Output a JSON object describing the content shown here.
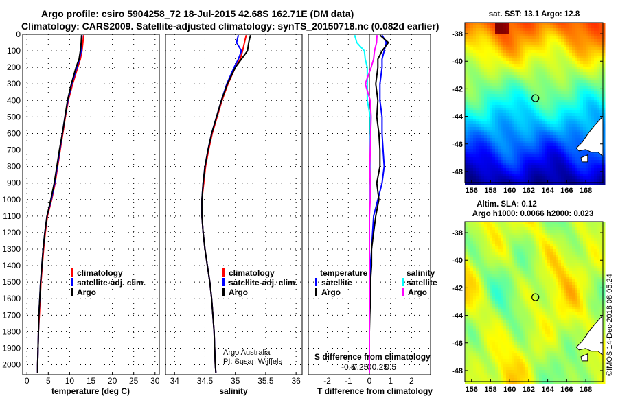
{
  "header": {
    "line1": "Argo profile: csiro 5904258_72 18-Jul-2015 42.68S 162.71E (DM data)",
    "line2": "Climatology: CARS2009. Satellite-adjusted climatology: synTS_20150718.nc (0.082d earlier)"
  },
  "colors": {
    "climatology": "#ff0000",
    "satellite": "#0000ff",
    "argo": "#000000",
    "sat_salinity": "#00ffff",
    "clim_salinity": "#ff00ff"
  },
  "chart_data": [
    {
      "type": "line",
      "name": "temperature",
      "xlabel": "temperature (deg C)",
      "ylabel": "",
      "xlim": [
        -1,
        31
      ],
      "ylim": [
        2060,
        0
      ],
      "xticks": [
        "0",
        "5",
        "10",
        "15",
        "20",
        "25",
        "30"
      ],
      "yticks": [
        "0",
        "100",
        "200",
        "300",
        "400",
        "500",
        "600",
        "700",
        "800",
        "900",
        "1000",
        "1100",
        "1200",
        "1300",
        "1400",
        "1500",
        "1600",
        "1700",
        "1800",
        "1900",
        "2000"
      ],
      "grid": true,
      "legend": [
        "climatology",
        "satellite-adj. clim.",
        "Argo"
      ],
      "depth": [
        5,
        50,
        100,
        150,
        200,
        300,
        400,
        500,
        600,
        700,
        800,
        900,
        1000,
        1100,
        1200,
        1300,
        1400,
        1500,
        1600,
        1700,
        1800,
        1900,
        2000,
        2050
      ],
      "series": [
        {
          "name": "climatology",
          "color": "#ff0000",
          "values": [
            13.3,
            13.1,
            12.9,
            12.5,
            11.9,
            10.7,
            9.7,
            9.0,
            8.4,
            7.8,
            7.2,
            6.6,
            5.8,
            4.8,
            4.3,
            3.9,
            3.6,
            3.3,
            3.1,
            2.9,
            2.7,
            2.6,
            2.5,
            2.5
          ]
        },
        {
          "name": "satellite-adj. clim.",
          "color": "#0000ff",
          "values": [
            12.9,
            12.8,
            12.7,
            12.3,
            11.7,
            10.5,
            9.6,
            8.9,
            8.3,
            7.7,
            7.1,
            6.5,
            5.7,
            4.7,
            4.2,
            3.8,
            3.5,
            3.2,
            3.0,
            2.8,
            2.7,
            2.6,
            2.5,
            2.5
          ]
        },
        {
          "name": "Argo",
          "color": "#000000",
          "values": [
            12.8,
            12.7,
            12.5,
            12.2,
            11.5,
            10.4,
            9.5,
            8.9,
            8.3,
            7.6,
            7.0,
            6.4,
            5.6,
            4.7,
            4.2,
            3.8,
            3.5,
            3.2,
            3.0,
            2.8,
            2.7,
            2.6,
            2.5,
            2.5
          ]
        }
      ]
    },
    {
      "type": "line",
      "name": "salinity",
      "xlabel": "salinity",
      "xlim": [
        33.85,
        36.1
      ],
      "ylim": [
        2060,
        0
      ],
      "xticks": [
        "34",
        "34.5",
        "35",
        "35.5",
        "36"
      ],
      "grid": true,
      "legend": [
        "climatology",
        "satellite-adj. clim.",
        "Argo"
      ],
      "annotation": [
        "Argo Australia",
        "PI: Susan Wijffels"
      ],
      "depth": [
        5,
        50,
        100,
        150,
        200,
        300,
        400,
        500,
        600,
        700,
        800,
        900,
        1000,
        1100,
        1200,
        1300,
        1400,
        1500,
        1600,
        1700,
        1800,
        1900,
        2000,
        2050
      ],
      "series": [
        {
          "name": "climatology",
          "color": "#ff0000",
          "values": [
            35.18,
            35.15,
            35.12,
            35.08,
            35.0,
            34.88,
            34.78,
            34.7,
            34.62,
            34.56,
            34.51,
            34.48,
            34.45,
            34.45,
            34.47,
            34.5,
            34.54,
            34.58,
            34.61,
            34.63,
            34.65,
            34.66,
            34.67,
            34.68
          ]
        },
        {
          "name": "satellite-adj. clim.",
          "color": "#0000ff",
          "values": [
            35.05,
            35.02,
            35.1,
            35.05,
            34.98,
            34.86,
            34.77,
            34.69,
            34.61,
            34.55,
            34.5,
            34.47,
            34.45,
            34.45,
            34.47,
            34.5,
            34.54,
            34.58,
            34.61,
            34.63,
            34.65,
            34.66,
            34.67,
            34.68
          ]
        },
        {
          "name": "Argo",
          "color": "#000000",
          "values": [
            35.25,
            35.22,
            35.2,
            35.1,
            35.0,
            34.87,
            34.77,
            34.69,
            34.61,
            34.55,
            34.5,
            34.47,
            34.45,
            34.45,
            34.47,
            34.5,
            34.54,
            34.58,
            34.61,
            34.63,
            34.65,
            34.66,
            34.67,
            34.68
          ]
        }
      ]
    },
    {
      "type": "line",
      "name": "difference",
      "xlabel": "T difference from climatology",
      "xlabel2": "S difference from climatology",
      "xlim": [
        -2.9,
        2.9
      ],
      "ylim": [
        2060,
        0
      ],
      "xticks": [
        "-2",
        "-1",
        "0",
        "1",
        "2"
      ],
      "xticks2": [
        "-0.5",
        "-0.25",
        "0",
        "0.25",
        "0.5"
      ],
      "grid": true,
      "legend_temperature_title": "temperature",
      "legend_salinity_title": "salinity",
      "legend_temperature": [
        "satellite",
        "Argo"
      ],
      "legend_salinity": [
        "satellite",
        "Argo"
      ],
      "depth": [
        5,
        50,
        100,
        150,
        200,
        300,
        400,
        500,
        600,
        700,
        800,
        900,
        1000,
        1100,
        1200,
        1300,
        1400,
        1500,
        1600,
        1700,
        1800,
        1900,
        2000,
        2050
      ],
      "series": [
        {
          "name": "T satellite",
          "color": "#0000ff",
          "values": [
            0.6,
            0.8,
            0.7,
            0.6,
            0.6,
            0.5,
            0.5,
            0.6,
            0.6,
            0.65,
            0.7,
            0.6,
            0.4,
            0.2,
            0.15,
            0.1,
            0.05,
            0.05,
            0.0,
            0.0,
            0.0,
            0.0,
            0.0,
            0.0
          ]
        },
        {
          "name": "T Argo",
          "color": "#000000",
          "values": [
            0.5,
            0.9,
            0.6,
            0.4,
            0.4,
            0.3,
            0.4,
            0.35,
            0.45,
            0.5,
            0.5,
            0.35,
            0.45,
            0.3,
            0.2,
            0.1,
            0.1,
            0.05,
            0.05,
            0.02,
            0.0,
            0.0,
            0.0,
            0.0
          ]
        },
        {
          "name": "S satellite",
          "color": "#00ffff",
          "values": [
            -0.35,
            -0.3,
            -0.12,
            -0.1,
            -0.05,
            -0.05,
            -0.05,
            0.02,
            0.02,
            0.0,
            0.03,
            0.02,
            0.0,
            0.0,
            0.0,
            0.0,
            0.0,
            0.0,
            0.0,
            0.0,
            0.0,
            0.0,
            0.0,
            0.0
          ]
        },
        {
          "name": "S Argo",
          "color": "#ff00ff",
          "values": [
            0.18,
            0.17,
            0.12,
            0.1,
            0.04,
            -0.1,
            0.02,
            0.04,
            0.03,
            0.02,
            0.01,
            0.02,
            0.02,
            0.0,
            0.0,
            0.0,
            0.0,
            0.0,
            0.0,
            0.0,
            0.0,
            0.0,
            0.0,
            0.0
          ]
        }
      ]
    },
    {
      "type": "heatmap",
      "name": "sst-map",
      "title": "sat. SST: 13.1 Argo: 12.8",
      "xticks": [
        "156",
        "158",
        "160",
        "162",
        "164",
        "166",
        "168"
      ],
      "yticks": [
        "-38",
        "-40",
        "-42",
        "-44",
        "-46",
        "-48"
      ],
      "xlim": [
        155.3,
        169.8
      ],
      "ylim": [
        -48.8,
        -37.2
      ],
      "marker": {
        "lon": 162.71,
        "lat": -42.68
      }
    },
    {
      "type": "heatmap",
      "name": "sla-map",
      "title": "Altim. SLA: 0.12",
      "subtitle": "Argo h1000: 0.0066 h2000: 0.023",
      "xticks": [
        "156",
        "158",
        "160",
        "162",
        "164",
        "166",
        "168"
      ],
      "yticks": [
        "-38",
        "-40",
        "-42",
        "-44",
        "-46",
        "-48"
      ],
      "xlim": [
        155.3,
        169.8
      ],
      "ylim": [
        -48.8,
        -37.2
      ],
      "marker": {
        "lon": 162.71,
        "lat": -42.68
      }
    }
  ],
  "credit": "©IMOS 14-Dec-2018 08:05:24"
}
